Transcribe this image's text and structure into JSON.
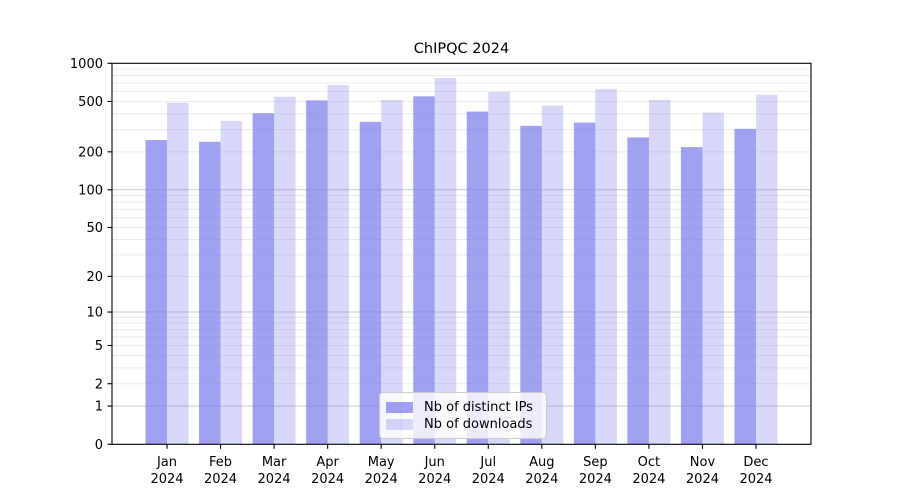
{
  "chart_data": {
    "type": "bar",
    "title": "ChIPQC 2024",
    "categories": [
      "Jan",
      "Feb",
      "Mar",
      "Apr",
      "May",
      "Jun",
      "Jul",
      "Aug",
      "Sep",
      "Oct",
      "Nov",
      "Dec"
    ],
    "year": "2024",
    "series": [
      {
        "name": "Nb of distinct IPs",
        "key": "ips",
        "values": [
          248,
          240,
          404,
          510,
          345,
          549,
          416,
          321,
          341,
          260,
          218,
          304
        ]
      },
      {
        "name": "Nb of downloads",
        "key": "downloads",
        "values": [
          489,
          351,
          545,
          675,
          514,
          766,
          594,
          464,
          627,
          514,
          408,
          566
        ]
      }
    ],
    "yticks": [
      0,
      1,
      2,
      5,
      10,
      20,
      50,
      100,
      200,
      500,
      1000
    ],
    "ylim": [
      0,
      1000
    ],
    "scale": "log10(1+x)",
    "grid": "horizontal, minor log decades",
    "legend_position": "inside bottom-center",
    "colors": {
      "ips": "rgba(125,125,235,0.72)",
      "downloads": "rgba(125,125,235,0.30)",
      "grid_major": "#c9c9c9",
      "grid_minor": "#ebebeb",
      "axis": "#000000"
    }
  }
}
